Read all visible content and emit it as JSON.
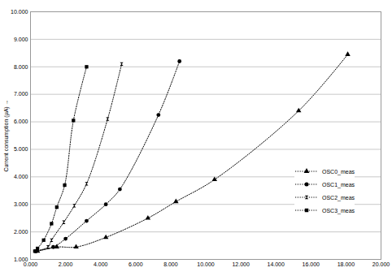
{
  "chart_data": {
    "type": "line",
    "y_label": "Current consumption (µA)",
    "xlim": [
      0,
      20
    ],
    "ylim": [
      1,
      10
    ],
    "xticks": [
      {
        "value": 0,
        "label": "0.000"
      },
      {
        "value": 2,
        "label": "2.000"
      },
      {
        "value": 4,
        "label": "4.000"
      },
      {
        "value": 6,
        "label": "6.000"
      },
      {
        "value": 8,
        "label": "8.000"
      },
      {
        "value": 10,
        "label": "10.000"
      },
      {
        "value": 12,
        "label": "12.000"
      },
      {
        "value": 14,
        "label": "14.000"
      },
      {
        "value": 16,
        "label": "16.000"
      },
      {
        "value": 18,
        "label": "18.000"
      },
      {
        "value": 20,
        "label": "20.000"
      }
    ],
    "yticks": [
      {
        "value": 1,
        "label": "1.000"
      },
      {
        "value": 2,
        "label": "2.000"
      },
      {
        "value": 3,
        "label": "3.000"
      },
      {
        "value": 4,
        "label": "4.000"
      },
      {
        "value": 5,
        "label": "5.000"
      },
      {
        "value": 6,
        "label": "6.000"
      },
      {
        "value": 7,
        "label": "7.000"
      },
      {
        "value": 8,
        "label": "8.000"
      },
      {
        "value": 9,
        "label": "9.000"
      },
      {
        "value": 10,
        "label": "10.000"
      }
    ],
    "grid": true,
    "legend": "right",
    "series": [
      {
        "name": "OSC0_meas",
        "color": "#000000",
        "marker": "triangle",
        "line_style": "dotted",
        "x": [
          0.4,
          1.5,
          2.6,
          4.3,
          6.7,
          8.3,
          10.5,
          15.3,
          18.1
        ],
        "values": [
          1.3,
          1.45,
          1.45,
          1.8,
          2.5,
          3.1,
          3.9,
          6.4,
          8.45
        ]
      },
      {
        "name": "OSC1_meas",
        "color": "#000000",
        "marker": "circle",
        "line_style": "dotted",
        "x": [
          0.3,
          1.3,
          2.0,
          3.2,
          4.3,
          5.1,
          7.3,
          8.5
        ],
        "values": [
          1.3,
          1.45,
          1.75,
          2.4,
          3.0,
          3.55,
          6.25,
          8.2
        ]
      },
      {
        "name": "OSC2_meas",
        "color": "#000000",
        "marker": "hourglass",
        "line_style": "dotted",
        "x": [
          0.3,
          1.0,
          1.2,
          1.9,
          2.5,
          3.2,
          4.4,
          5.2
        ],
        "values": [
          1.3,
          1.45,
          1.7,
          2.35,
          2.95,
          3.75,
          6.1,
          8.1
        ]
      },
      {
        "name": "OSC3_meas",
        "color": "#000000",
        "marker": "square",
        "line_style": "dotted",
        "x": [
          0.25,
          0.4,
          0.75,
          1.2,
          1.5,
          1.95,
          2.45,
          3.2
        ],
        "values": [
          1.3,
          1.4,
          1.7,
          2.3,
          2.9,
          3.7,
          6.05,
          8.0
        ]
      }
    ]
  }
}
